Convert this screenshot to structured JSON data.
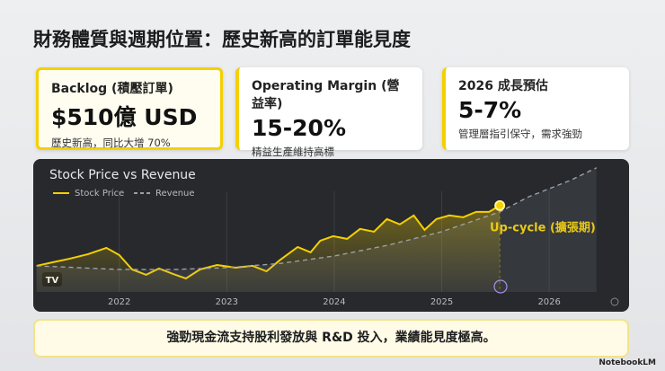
{
  "header": {
    "title": "財務體質與週期位置：歷史新高的訂單能見度"
  },
  "cards": [
    {
      "label": "Backlog (積壓訂單)",
      "value": "$510億 USD",
      "note": "歷史新高，同比大增 70%"
    },
    {
      "label": "Operating Margin (營益率)",
      "value": "15-20%",
      "note": "精益生產維持高標"
    },
    {
      "label": "2026 成長預估",
      "value": "5-7%",
      "note": "管理層指引保守，需求強勁"
    }
  ],
  "chart_data": {
    "type": "line",
    "title": "Stock Price vs Revenue",
    "series": [
      {
        "name": "Stock Price",
        "color": "#f5d000",
        "x": [
          2021.23,
          2021.38,
          2021.54,
          2021.71,
          2021.88,
          2022.0,
          2022.12,
          2022.25,
          2022.37,
          2022.5,
          2022.62,
          2022.75,
          2022.91,
          2023.08,
          2023.24,
          2023.37,
          2023.49,
          2023.66,
          2023.78,
          2023.87,
          2023.99,
          2024.12,
          2024.24,
          2024.37,
          2024.49,
          2024.61,
          2024.74,
          2024.84,
          2024.95,
          2025.07,
          2025.2,
          2025.32,
          2025.44,
          2025.54
        ],
        "values": [
          21.5,
          24.4,
          27.4,
          31.1,
          36.3,
          30.4,
          18.5,
          14.1,
          19.3,
          14.8,
          11.1,
          18.5,
          22.2,
          20.0,
          21.5,
          17.0,
          25.9,
          37.0,
          32.6,
          42.2,
          45.9,
          43.7,
          51.9,
          49.6,
          60.0,
          55.6,
          63.0,
          51.1,
          60.0,
          63.0,
          61.5,
          65.9,
          65.9,
          71.1
        ]
      },
      {
        "name": "Revenue",
        "color": "#9aa0a8",
        "dashed": true,
        "x": [
          2021.23,
          2022.0,
          2022.5,
          2023.0,
          2023.5,
          2024.0,
          2024.5,
          2025.0,
          2025.54,
          2025.8,
          2026.2,
          2026.44
        ],
        "values": [
          21.5,
          18.5,
          18.5,
          20.0,
          23.5,
          29.6,
          38.5,
          49.6,
          65.9,
          78.0,
          92.0,
          102.2
        ]
      }
    ],
    "annotation": "Up-cycle (擴張期)",
    "xlim": [
      2021.2,
      2026.45
    ],
    "xticks": [
      2022,
      2023,
      2024,
      2025,
      2026
    ],
    "ylim": [
      0,
      105
    ]
  },
  "footer": {
    "text": "強勁現金流支持股利發放與 R&D 投入，業績能見度極高。"
  },
  "branding": "NotebookLM"
}
